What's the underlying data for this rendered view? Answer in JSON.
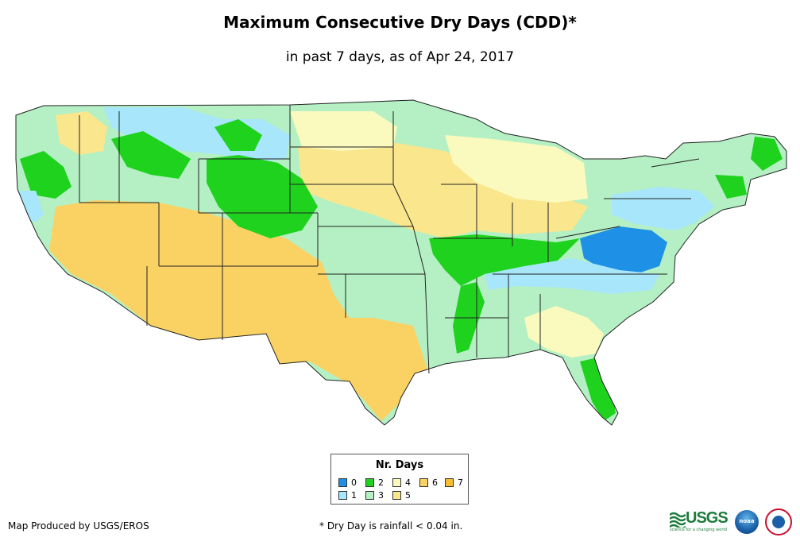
{
  "title": "Maximum Consecutive Dry Days (CDD)*",
  "subtitle": "in past 7 days, as of Apr 24, 2017",
  "legend": {
    "title": "Nr. Days",
    "items": [
      {
        "label": "0",
        "color": "#1e90e6"
      },
      {
        "label": "1",
        "color": "#a8e6fb"
      },
      {
        "label": "2",
        "color": "#1ed21e"
      },
      {
        "label": "3",
        "color": "#b4f0c3"
      },
      {
        "label": "4",
        "color": "#fafabe"
      },
      {
        "label": "5",
        "color": "#fae68c"
      },
      {
        "label": "6",
        "color": "#fad264"
      },
      {
        "label": "7",
        "color": "#f5be32"
      }
    ]
  },
  "footer": {
    "producer": "Map Produced by USGS/EROS",
    "footnote": "* Dry Day is rainfall < 0.04 in."
  },
  "logos": {
    "usgs_text": "USGS",
    "usgs_tagline": "science for a changing world",
    "noaa_text": "noaa"
  },
  "colors": {
    "state_border": "#222222",
    "background": "#ffffff"
  }
}
